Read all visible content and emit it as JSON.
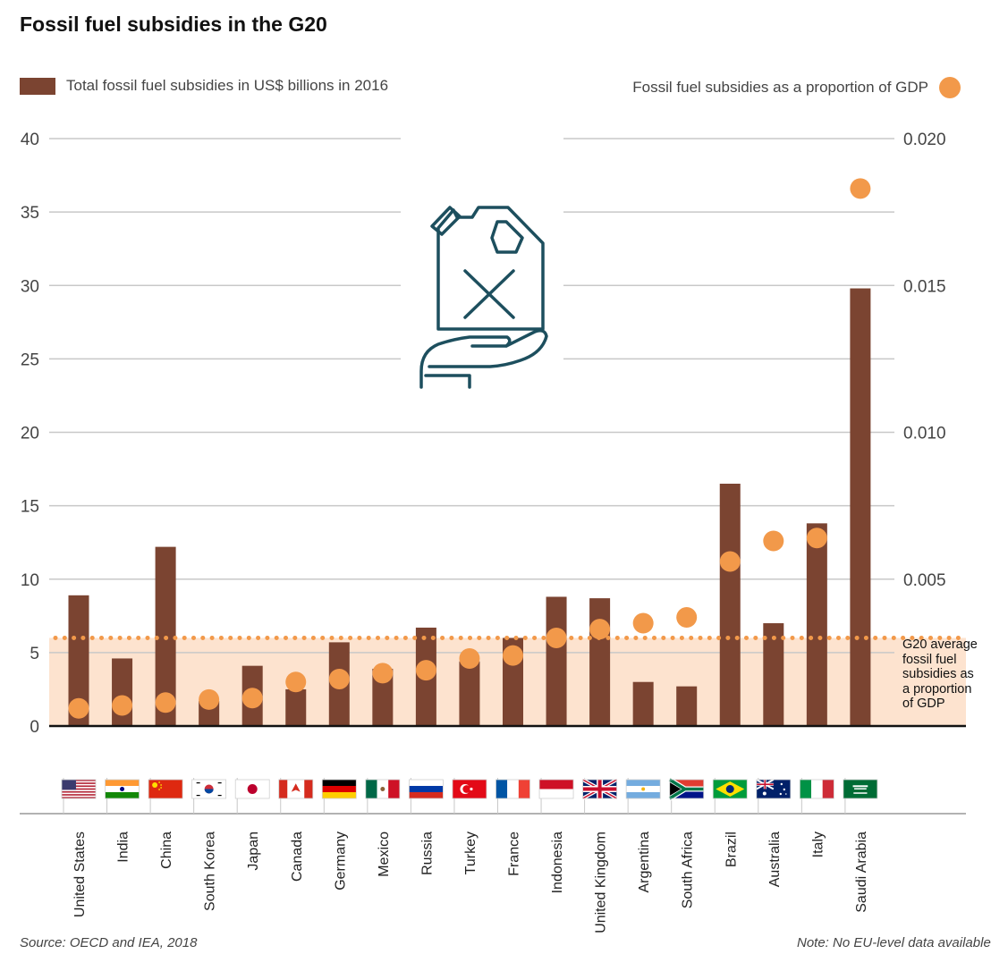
{
  "header": {
    "title": "Fossil fuel subsidies in the G20"
  },
  "legend": {
    "bars_label": "Total fossil fuel subsidies in US$ billions in 2016",
    "dots_label": "Fossil fuel subsidies as a proportion of GDP"
  },
  "footer": {
    "source": "Source: OECD and IEA, 2018",
    "note": "Note: No EU-level data available"
  },
  "average": {
    "label_lines": [
      "G20 average",
      "fossil fuel",
      "subsidies as",
      "a proportion",
      "of GDP"
    ],
    "value": 0.003
  },
  "colors": {
    "bar": "#7b4431",
    "dot": "#f2994a",
    "band": "#fde3cf",
    "grid": "#c8c8c8",
    "icon": "#1d4f5e"
  },
  "icons": [
    "fuel-can-in-hand-icon"
  ],
  "chart_data": {
    "type": "bar",
    "categories": [
      "United States",
      "India",
      "China",
      "South Korea",
      "Japan",
      "Canada",
      "Germany",
      "Mexico",
      "Russia",
      "Turkey",
      "France",
      "Indonesia",
      "United Kingdom",
      "Argentina",
      "South Africa",
      "Brazil",
      "Australia",
      "Italy",
      "Saudi Arabia"
    ],
    "flags": [
      "us",
      "in",
      "cn",
      "kr",
      "jp",
      "ca",
      "de",
      "mx",
      "ru",
      "tr",
      "fr",
      "id",
      "gb",
      "ar",
      "za",
      "br",
      "au",
      "it",
      "sa"
    ],
    "series": [
      {
        "name": "Total fossil fuel subsidies in US$ billions in 2016",
        "axis": "left",
        "values": [
          8.9,
          4.6,
          12.2,
          1.7,
          4.1,
          2.5,
          5.7,
          3.9,
          6.7,
          4.4,
          6.0,
          8.8,
          8.7,
          3.0,
          2.7,
          16.5,
          7.0,
          13.8,
          29.8
        ]
      },
      {
        "name": "Fossil fuel subsidies as a proportion of GDP",
        "axis": "right",
        "values": [
          0.0006,
          0.0007,
          0.0008,
          0.0009,
          0.00095,
          0.0015,
          0.0016,
          0.0018,
          0.0019,
          0.0023,
          0.0024,
          0.003,
          0.0033,
          0.0035,
          0.0037,
          0.0056,
          0.0063,
          0.0064,
          0.0183
        ]
      }
    ],
    "y_left": {
      "lim": [
        0,
        40
      ],
      "ticks": [
        0,
        5,
        10,
        15,
        20,
        25,
        30,
        35,
        40
      ],
      "tick_labels": [
        "0",
        "5",
        "10",
        "15",
        "20",
        "25",
        "30",
        "35",
        "40"
      ]
    },
    "y_right": {
      "lim": [
        0,
        0.02
      ],
      "ticks": [
        0.005,
        0.01,
        0.015,
        0.02
      ],
      "tick_labels": [
        "0.005",
        "0.010",
        "0.015",
        "0.020"
      ]
    },
    "grid": true,
    "legend_position": "top"
  }
}
